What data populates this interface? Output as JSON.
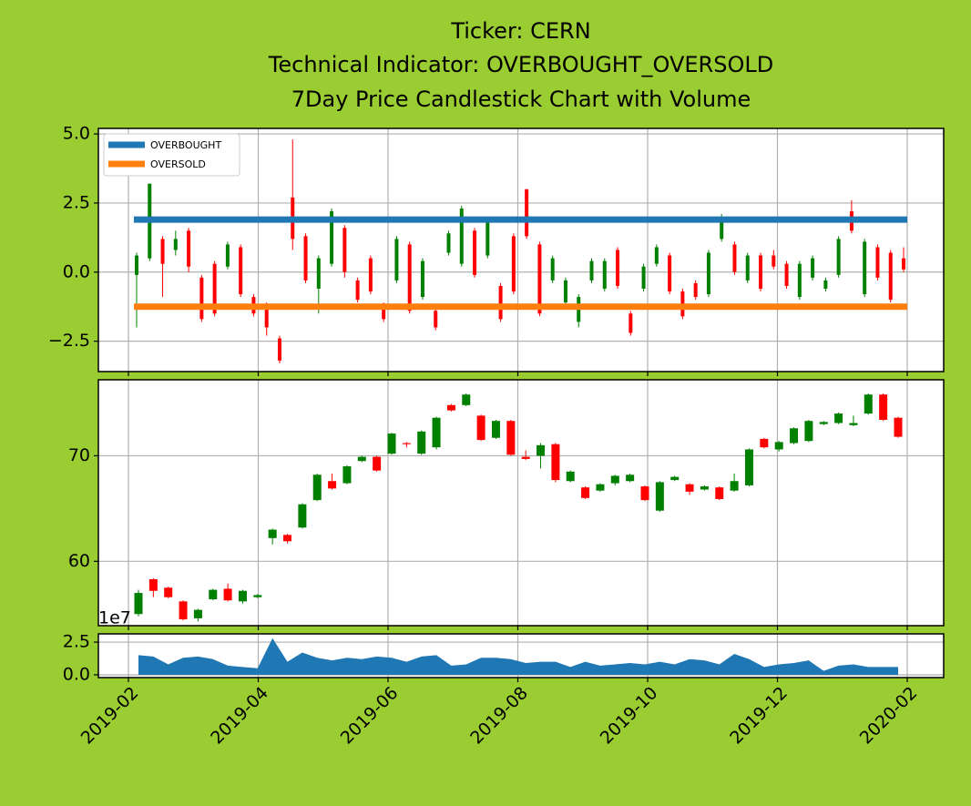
{
  "chart_data": [
    {
      "type": "candlestick",
      "title": [
        "Ticker: CERN",
        "Technical Indicator: OVERBOUGHT_OVERSOLD",
        "7Day Price Candlestick Chart with Volume"
      ],
      "open": [
        -0.1,
        0.5,
        1.2,
        0.8,
        1.5,
        -0.2,
        0.3,
        0.2,
        0.9,
        -0.9,
        -1.2,
        -2.4,
        2.7,
        1.3,
        -0.6,
        0.3,
        1.6,
        -0.3,
        0.5,
        -1.2,
        -0.3,
        1.0,
        -0.9,
        -1.4,
        0.7,
        0.3,
        1.5,
        0.6,
        -0.5,
        1.3,
        3.0,
        1.0,
        -0.3,
        -1.1,
        -1.8,
        -0.3,
        -0.6,
        0.8,
        -1.5,
        -0.6,
        0.3,
        0.6,
        -0.7,
        -0.4,
        -0.8,
        1.2,
        1.0,
        -0.3,
        0.6,
        0.6,
        0.3,
        -0.9,
        -0.2,
        -0.6,
        -0.1,
        2.2,
        -0.8,
        0.9,
        0.7,
        0.5
      ],
      "high": [
        0.7,
        3.2,
        1.3,
        1.5,
        1.6,
        -0.1,
        0.4,
        1.1,
        1.0,
        -0.8,
        -1.1,
        -2.3,
        4.8,
        1.4,
        0.6,
        2.3,
        1.7,
        -0.2,
        0.6,
        -1.1,
        1.3,
        1.1,
        0.5,
        -1.3,
        1.5,
        2.4,
        1.6,
        1.9,
        -0.4,
        1.4,
        3.0,
        1.1,
        0.6,
        -0.2,
        -0.8,
        0.5,
        0.5,
        0.9,
        -1.4,
        0.3,
        1.0,
        0.7,
        -0.6,
        -0.3,
        0.8,
        2.1,
        1.1,
        0.7,
        0.7,
        0.8,
        0.4,
        0.4,
        0.6,
        -0.2,
        1.3,
        2.6,
        1.2,
        1.0,
        0.8,
        0.9
      ],
      "low": [
        -2.0,
        0.4,
        -0.9,
        0.6,
        0.0,
        -1.8,
        -1.6,
        0.1,
        -0.9,
        -1.6,
        -2.3,
        -3.3,
        0.8,
        -0.4,
        -1.5,
        0.2,
        -0.2,
        -1.1,
        -0.8,
        -1.8,
        -0.4,
        -1.5,
        -1.0,
        -2.1,
        0.6,
        0.2,
        -0.2,
        0.5,
        -1.8,
        -0.8,
        1.2,
        -1.6,
        -0.4,
        -1.2,
        -2.0,
        -0.4,
        -0.7,
        -0.6,
        -2.3,
        -0.7,
        0.2,
        -0.8,
        -1.7,
        -1.0,
        -0.9,
        1.1,
        -0.1,
        -0.4,
        -0.7,
        0.1,
        -0.6,
        -1.0,
        -0.3,
        -0.7,
        -0.2,
        1.4,
        -0.9,
        -0.3,
        -1.1,
        0.0
      ],
      "close": [
        0.6,
        3.2,
        0.3,
        1.2,
        0.2,
        -1.7,
        -1.5,
        1.0,
        -0.8,
        -1.5,
        -2.0,
        -3.2,
        1.2,
        -0.3,
        0.5,
        2.2,
        0.0,
        -1.0,
        -0.7,
        -1.7,
        1.2,
        -1.4,
        0.4,
        -2.0,
        1.4,
        2.3,
        -0.1,
        1.8,
        -1.7,
        -0.7,
        1.3,
        -1.5,
        0.5,
        -0.3,
        -0.9,
        0.4,
        0.4,
        -0.5,
        -2.2,
        0.2,
        0.9,
        -0.7,
        -1.6,
        -0.9,
        0.7,
        2.0,
        0.0,
        0.6,
        -0.6,
        0.2,
        -0.5,
        0.3,
        0.5,
        -0.3,
        1.2,
        1.5,
        1.1,
        -0.2,
        -1.0,
        0.1
      ],
      "up_color": "#008000",
      "down_color": "#ff0000",
      "ylim": [
        -3.6,
        5.2
      ],
      "yticks": [
        {
          "value": -2.5,
          "label": "−2.5"
        },
        {
          "value": 0,
          "label": "0.0"
        },
        2.5,
        {
          "value": 5,
          "label": "5.0"
        }
      ],
      "hlines": [
        {
          "name": "OVERBOUGHT",
          "color": "#1f77b4",
          "value": 1.9
        },
        {
          "name": "OVERSOLD",
          "color": "#ff7f0e",
          "value": -1.25
        }
      ],
      "legend": "upper left",
      "grid": true
    },
    {
      "type": "candlestick",
      "open": [
        55.0,
        58.3,
        57.5,
        56.2,
        54.6,
        56.4,
        57.4,
        56.2,
        56.6,
        62.2,
        62.5,
        63.2,
        65.8,
        67.6,
        67.4,
        69.5,
        69.9,
        70.2,
        71.2,
        70.2,
        70.8,
        74.8,
        74.8,
        73.8,
        71.7,
        73.3,
        69.9,
        70.0,
        71.1,
        67.6,
        67.0,
        66.7,
        67.4,
        67.6,
        67.1,
        64.8,
        67.7,
        67.3,
        66.8,
        67.0,
        66.7,
        67.2,
        71.6,
        70.6,
        71.2,
        71.4,
        73.0,
        73.1,
        72.9,
        74.0,
        75.8,
        73.6
      ],
      "high": [
        57.3,
        58.4,
        57.6,
        56.3,
        55.5,
        57.4,
        57.9,
        57.3,
        56.9,
        63.1,
        62.6,
        65.5,
        68.3,
        68.3,
        69.1,
        70.0,
        70.0,
        72.2,
        71.3,
        72.4,
        73.7,
        74.9,
        75.9,
        73.9,
        73.4,
        73.4,
        70.5,
        71.2,
        71.2,
        68.6,
        67.1,
        67.4,
        68.2,
        68.3,
        67.2,
        67.6,
        68.1,
        67.4,
        67.2,
        67.1,
        68.3,
        70.7,
        71.7,
        71.4,
        72.7,
        73.4,
        73.3,
        74.1,
        73.8,
        75.9,
        75.9,
        73.7
      ],
      "low": [
        54.8,
        56.6,
        56.5,
        54.4,
        54.3,
        56.3,
        56.2,
        56.0,
        56.5,
        61.6,
        61.7,
        63.1,
        65.7,
        66.8,
        67.3,
        69.4,
        68.5,
        70.1,
        70.8,
        70.1,
        70.6,
        74.2,
        74.7,
        71.4,
        71.6,
        70.0,
        69.6,
        68.8,
        67.5,
        67.5,
        65.9,
        66.6,
        67.2,
        67.5,
        65.7,
        64.7,
        67.6,
        66.3,
        66.7,
        65.8,
        66.6,
        67.1,
        70.7,
        70.4,
        71.1,
        71.3,
        72.9,
        73.0,
        72.8,
        73.9,
        73.3,
        71.7
      ],
      "close": [
        57.0,
        57.2,
        56.6,
        54.5,
        55.4,
        57.3,
        56.3,
        57.2,
        56.8,
        63.0,
        61.9,
        65.4,
        68.2,
        66.9,
        69.0,
        69.9,
        68.6,
        72.1,
        71.1,
        72.3,
        73.6,
        74.3,
        75.8,
        71.5,
        73.3,
        70.1,
        69.7,
        71.0,
        67.7,
        68.5,
        66.0,
        67.3,
        68.1,
        68.2,
        65.8,
        67.5,
        68.0,
        66.6,
        67.1,
        65.9,
        67.6,
        70.6,
        70.8,
        71.3,
        72.6,
        73.3,
        73.2,
        74.0,
        73.1,
        75.8,
        73.4,
        71.8
      ],
      "up_color": "#008000",
      "down_color": "#ff0000",
      "ylim": [
        53.9,
        77.2
      ],
      "yticks": [
        60,
        70
      ],
      "grid": true
    },
    {
      "type": "area",
      "values": [
        1.5,
        1.4,
        0.8,
        1.3,
        1.4,
        1.2,
        0.7,
        0.6,
        0.5,
        2.8,
        1.0,
        1.7,
        1.3,
        1.1,
        1.3,
        1.2,
        1.4,
        1.3,
        1.0,
        1.4,
        1.5,
        0.7,
        0.8,
        1.3,
        1.3,
        1.2,
        0.9,
        1.0,
        1.0,
        0.6,
        1.0,
        0.7,
        0.8,
        0.9,
        0.8,
        1.0,
        0.8,
        1.2,
        1.1,
        0.8,
        1.6,
        1.2,
        0.6,
        0.8,
        0.9,
        1.1,
        0.3,
        0.7,
        0.8,
        0.6,
        0.6,
        0.6
      ],
      "color": "#1f77b4",
      "ylim": [
        -0.21,
        3.13
      ],
      "yticks": [
        {
          "value": 0,
          "label": "0.0"
        },
        2.5
      ],
      "offset_label": "1e7",
      "xticks": [
        "2019-02",
        "2019-04",
        "2019-06",
        "2019-08",
        "2019-10",
        "2019-12",
        "2020-02"
      ],
      "grid": true
    }
  ]
}
